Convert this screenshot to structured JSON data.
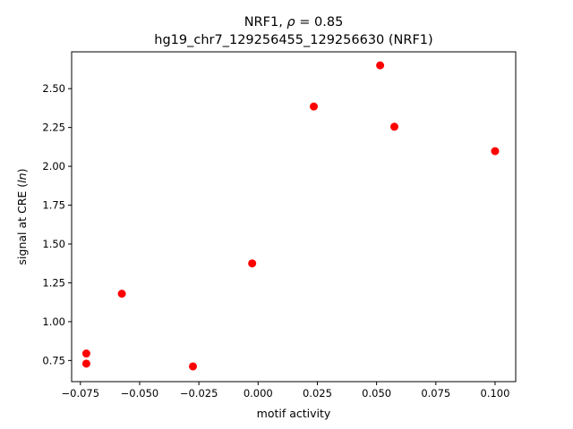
{
  "chart_data": {
    "type": "scatter",
    "title_line1": "NRF1, ρ = 0.85",
    "title_line2": "hg19_chr7_129256455_129256630 (NRF1)",
    "xlabel": "motif activity",
    "ylabel": "signal at CRE (ln)",
    "xlim": [
      -0.0787,
      0.1087
    ],
    "ylim": [
      0.614,
      2.737
    ],
    "xticks": [
      -0.075,
      -0.05,
      -0.025,
      0.0,
      0.025,
      0.05,
      0.075,
      0.1
    ],
    "xtick_labels": [
      "−0.075",
      "−0.050",
      "−0.025",
      "0.000",
      "0.025",
      "0.050",
      "0.075",
      "0.100"
    ],
    "yticks": [
      0.75,
      1.0,
      1.25,
      1.5,
      1.75,
      2.0,
      2.25,
      2.5
    ],
    "ytick_labels": [
      "0.75",
      "1.00",
      "1.25",
      "1.50",
      "1.75",
      "2.00",
      "2.25",
      "2.50"
    ],
    "grid": false,
    "marker_color": "#ff0000",
    "points": [
      {
        "x": -0.0725,
        "y": 0.795
      },
      {
        "x": -0.0725,
        "y": 0.73
      },
      {
        "x": -0.0575,
        "y": 1.18
      },
      {
        "x": -0.0275,
        "y": 0.712
      },
      {
        "x": -0.0025,
        "y": 1.375
      },
      {
        "x": 0.0235,
        "y": 2.385
      },
      {
        "x": 0.0515,
        "y": 2.65
      },
      {
        "x": 0.0575,
        "y": 2.255
      },
      {
        "x": 0.1,
        "y": 2.098
      }
    ]
  }
}
